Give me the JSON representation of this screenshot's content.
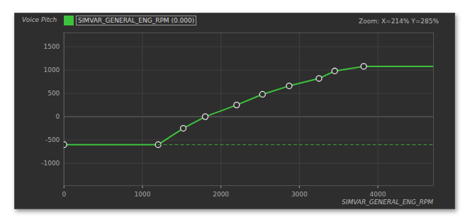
{
  "chart_data": {
    "type": "line",
    "y_label": "Voice Pitch",
    "x_label": "SIMVAR_GENERAL_ENG_RPM",
    "annotations": [
      "Zoom: X=214% Y=285%"
    ],
    "xlim": [
      0,
      4710
    ],
    "ylim": [
      -1480,
      1800
    ],
    "xticks": [
      0,
      1000,
      2000,
      3000,
      4000
    ],
    "yticks": [
      -1000,
      -500,
      0,
      500,
      1000,
      1500
    ],
    "grid": true,
    "legend": "top-left",
    "series": [
      {
        "name": "SIMVAR_GENERAL_ENG_RPM (0.000)",
        "color": "#3cc23c",
        "marker": "circle",
        "line_style": "solid",
        "x": [
          0,
          1200,
          1520,
          1800,
          2200,
          2530,
          2870,
          3250,
          3450,
          3820
        ],
        "values": [
          -600,
          -600,
          -250,
          0,
          250,
          480,
          660,
          820,
          980,
          1080
        ]
      },
      {
        "color": "#3a8f3a",
        "marker": "none",
        "line_style": "dashed",
        "x": [
          1200,
          4710
        ],
        "values": [
          -600,
          -600
        ]
      }
    ]
  }
}
